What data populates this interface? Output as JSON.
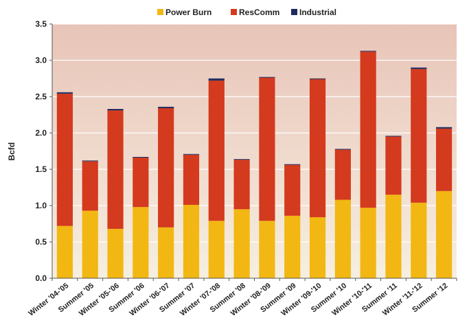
{
  "chart_data": {
    "type": "bar",
    "stacked": true,
    "categories": [
      "Winter '04-'05",
      "Summer '05",
      "Winter '05-'06",
      "Summer '06",
      "Winter '06-'07",
      "Summer '07",
      "Winter '07-'08",
      "Summer '08",
      "Winter '08-'09",
      "Summer '09",
      "Winter '09-'10",
      "Summer '10",
      "Winter '10-'11",
      "Summer '11",
      "Winter '11-'12",
      "Summer '12"
    ],
    "series": [
      {
        "name": "Power Burn",
        "color": "#f2b713",
        "values": [
          0.72,
          0.93,
          0.68,
          0.98,
          0.7,
          1.01,
          0.79,
          0.95,
          0.79,
          0.86,
          0.84,
          1.08,
          0.97,
          1.15,
          1.04,
          1.2
        ]
      },
      {
        "name": "ResComm",
        "color": "#d43a1e",
        "values": [
          1.82,
          0.68,
          1.63,
          0.68,
          1.64,
          0.69,
          1.93,
          0.68,
          1.97,
          0.7,
          1.9,
          0.69,
          2.15,
          0.8,
          1.84,
          0.86
        ]
      },
      {
        "name": "Industrial",
        "color": "#1f2a5c",
        "values": [
          0.02,
          0.01,
          0.02,
          0.01,
          0.02,
          0.01,
          0.03,
          0.01,
          0.01,
          0.01,
          0.01,
          0.01,
          0.01,
          0.01,
          0.02,
          0.02
        ]
      }
    ],
    "ylabel": "Bcfd",
    "xlabel": "",
    "ylim": [
      0,
      3.5
    ],
    "yticks": [
      "0.0",
      "0.5",
      "1.0",
      "1.5",
      "2.0",
      "2.5",
      "3.0",
      "3.5"
    ],
    "grid": true,
    "legend_position": "top"
  }
}
